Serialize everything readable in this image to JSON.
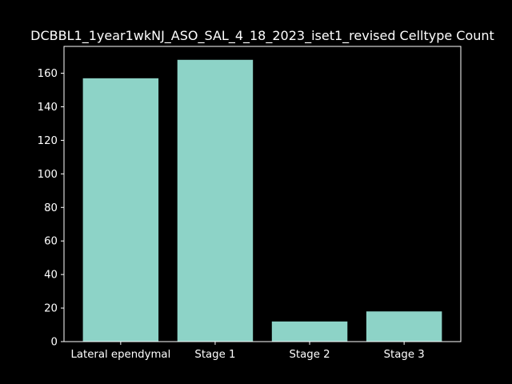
{
  "chart_data": {
    "type": "bar",
    "title": "DCBBL1_1year1wkNJ_ASO_SAL_4_18_2023_iset1_revised Celltype Count",
    "xlabel": "",
    "ylabel": "",
    "categories": [
      "Lateral ependymal",
      "Stage 1",
      "Stage 2",
      "Stage 3"
    ],
    "values": [
      157,
      168,
      12,
      18
    ],
    "ylim": [
      0,
      176
    ],
    "yticks": [
      "0",
      "20",
      "40",
      "60",
      "80",
      "100",
      "120",
      "140",
      "160"
    ],
    "grid": false,
    "legend": "none",
    "colors": {
      "bar": "#8dd3c7",
      "background": "#000000",
      "axes": "#ffffff",
      "text": "#ffffff"
    }
  }
}
